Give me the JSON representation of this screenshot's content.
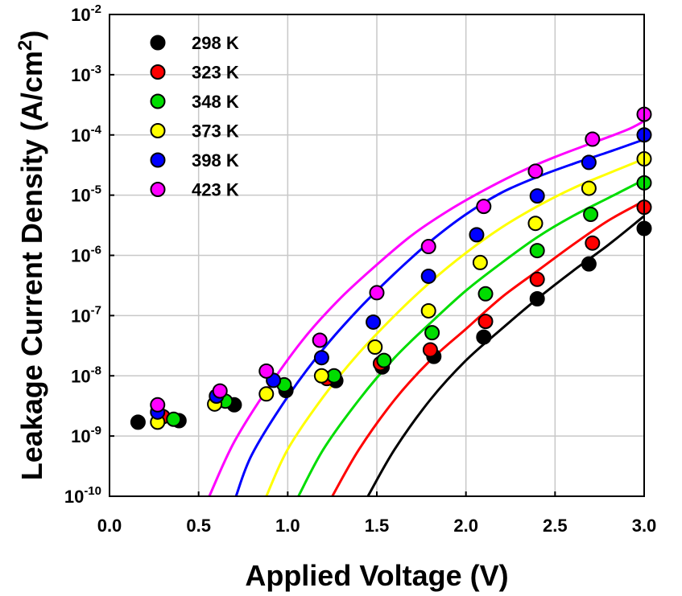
{
  "chart_data": {
    "type": "scatter",
    "xlabel": "Applied Voltage (V)",
    "ylabel": "Leakage Current Density (A/cm",
    "ylabel_sup": "2",
    "ylabel_end": ")",
    "xlim": [
      0.0,
      3.0
    ],
    "ylim_log10": [
      -10,
      -2
    ],
    "y_scale": "log",
    "grid": true,
    "legend_position": "top-left",
    "x_ticks": [
      {
        "value": 0.0,
        "label": "0.0"
      },
      {
        "value": 0.5,
        "label": "0.5"
      },
      {
        "value": 1.0,
        "label": "1.0"
      },
      {
        "value": 1.5,
        "label": "1.5"
      },
      {
        "value": 2.0,
        "label": "2.0"
      },
      {
        "value": 2.5,
        "label": "2.5"
      },
      {
        "value": 3.0,
        "label": "3.0"
      }
    ],
    "y_ticks": [
      {
        "exp": -2,
        "base": "10",
        "sup": "-2"
      },
      {
        "exp": -3,
        "base": "10",
        "sup": "-3"
      },
      {
        "exp": -4,
        "base": "10",
        "sup": "-4"
      },
      {
        "exp": -5,
        "base": "10",
        "sup": "-5"
      },
      {
        "exp": -6,
        "base": "10",
        "sup": "-6"
      },
      {
        "exp": -7,
        "base": "10",
        "sup": "-7"
      },
      {
        "exp": -8,
        "base": "10",
        "sup": "-8"
      },
      {
        "exp": -9,
        "base": "10",
        "sup": "-9"
      },
      {
        "exp": -10,
        "base": "10",
        "sup": "-10"
      }
    ],
    "series": [
      {
        "name": "298 K",
        "color": "#000000",
        "points": [
          [
            0.16,
            1.7e-09
          ],
          [
            0.39,
            1.8e-09
          ],
          [
            0.7,
            3.3e-09
          ],
          [
            0.99,
            5.7e-09
          ],
          [
            1.27,
            8.3e-09
          ],
          [
            1.53,
            1.4e-08
          ],
          [
            1.82,
            2.1e-08
          ],
          [
            2.1,
            4.4e-08
          ],
          [
            2.4,
            1.9e-07
          ],
          [
            2.69,
            7.2e-07
          ],
          [
            3.0,
            2.8e-06
          ]
        ],
        "fit": [
          [
            1.45,
            1e-10
          ],
          [
            1.6,
            6e-10
          ],
          [
            1.8,
            4e-09
          ],
          [
            2.0,
            1.8e-08
          ],
          [
            2.2,
            6e-08
          ],
          [
            2.4,
            1.9e-07
          ],
          [
            2.6,
            5.5e-07
          ],
          [
            2.8,
            1.5e-06
          ],
          [
            3.0,
            4.5e-06
          ]
        ]
      },
      {
        "name": "323 K",
        "color": "#ff0000",
        "points": [
          [
            0.3,
            2.1e-09
          ],
          [
            1.22,
            9e-09
          ],
          [
            1.52,
            1.6e-08
          ],
          [
            1.8,
            2.7e-08
          ],
          [
            2.11,
            8e-08
          ],
          [
            2.4,
            4e-07
          ],
          [
            2.71,
            1.6e-06
          ],
          [
            3.0,
            6.3e-06
          ]
        ],
        "fit": [
          [
            1.25,
            1e-10
          ],
          [
            1.4,
            6e-10
          ],
          [
            1.6,
            4e-09
          ],
          [
            1.8,
            1.8e-08
          ],
          [
            2.0,
            6e-08
          ],
          [
            2.2,
            2e-07
          ],
          [
            2.4,
            5.5e-07
          ],
          [
            2.6,
            1.5e-06
          ],
          [
            2.8,
            3.8e-06
          ],
          [
            3.0,
            8e-06
          ]
        ]
      },
      {
        "name": "348 K",
        "color": "#00dd00",
        "points": [
          [
            0.36,
            1.9e-09
          ],
          [
            0.65,
            3.8e-09
          ],
          [
            0.98,
            7.1e-09
          ],
          [
            1.26,
            1e-08
          ],
          [
            1.54,
            1.8e-08
          ],
          [
            1.81,
            5.2e-08
          ],
          [
            2.11,
            2.3e-07
          ],
          [
            2.4,
            1.2e-06
          ],
          [
            2.7,
            4.8e-06
          ],
          [
            3.0,
            1.6e-05
          ]
        ],
        "fit": [
          [
            1.06,
            1e-10
          ],
          [
            1.2,
            6e-10
          ],
          [
            1.4,
            4e-09
          ],
          [
            1.6,
            2e-08
          ],
          [
            1.8,
            7.5e-08
          ],
          [
            2.0,
            2.6e-07
          ],
          [
            2.2,
            7.5e-07
          ],
          [
            2.4,
            2e-06
          ],
          [
            2.6,
            4.5e-06
          ],
          [
            2.8,
            9e-06
          ],
          [
            3.0,
            1.8e-05
          ]
        ]
      },
      {
        "name": "373 K",
        "color": "#ffff00",
        "points": [
          [
            0.27,
            1.7e-09
          ],
          [
            0.59,
            3.4e-09
          ],
          [
            0.88,
            5e-09
          ],
          [
            1.19,
            1e-08
          ],
          [
            1.49,
            3e-08
          ],
          [
            1.79,
            1.2e-07
          ],
          [
            2.08,
            7.6e-07
          ],
          [
            2.39,
            3.4e-06
          ],
          [
            2.69,
            1.3e-05
          ],
          [
            3.0,
            4e-05
          ]
        ],
        "fit": [
          [
            0.88,
            1e-10
          ],
          [
            1.0,
            6e-10
          ],
          [
            1.2,
            4.5e-09
          ],
          [
            1.4,
            2.4e-08
          ],
          [
            1.6,
            1e-07
          ],
          [
            1.8,
            3.6e-07
          ],
          [
            2.0,
            1.1e-06
          ],
          [
            2.2,
            2.9e-06
          ],
          [
            2.4,
            6.5e-06
          ],
          [
            2.6,
            1.3e-05
          ],
          [
            2.8,
            2.3e-05
          ],
          [
            3.0,
            4e-05
          ]
        ]
      },
      {
        "name": "398 K",
        "color": "#0000ff",
        "points": [
          [
            0.27,
            2.5e-09
          ],
          [
            0.6,
            4.6e-09
          ],
          [
            0.92,
            8.4e-09
          ],
          [
            1.19,
            2e-08
          ],
          [
            1.48,
            7.8e-08
          ],
          [
            1.79,
            4.5e-07
          ],
          [
            2.06,
            2.2e-06
          ],
          [
            2.4,
            9.7e-06
          ],
          [
            2.69,
            3.5e-05
          ],
          [
            3.0,
            0.0001
          ]
        ],
        "fit": [
          [
            0.71,
            1e-10
          ],
          [
            0.8,
            5e-10
          ],
          [
            1.0,
            4.5e-09
          ],
          [
            1.2,
            2.8e-08
          ],
          [
            1.4,
            1.3e-07
          ],
          [
            1.6,
            5e-07
          ],
          [
            1.8,
            1.7e-06
          ],
          [
            2.0,
            4.8e-06
          ],
          [
            2.2,
            1.1e-05
          ],
          [
            2.4,
            2e-05
          ],
          [
            2.6,
            3.3e-05
          ],
          [
            2.8,
            5.2e-05
          ],
          [
            3.0,
            8.4e-05
          ]
        ]
      },
      {
        "name": "423 K",
        "color": "#ff00ff",
        "points": [
          [
            0.27,
            3.3e-09
          ],
          [
            0.62,
            5.6e-09
          ],
          [
            0.88,
            1.2e-08
          ],
          [
            1.18,
            3.9e-08
          ],
          [
            1.5,
            2.4e-07
          ],
          [
            1.79,
            1.4e-06
          ],
          [
            2.1,
            6.5e-06
          ],
          [
            2.39,
            2.5e-05
          ],
          [
            2.71,
            8.5e-05
          ],
          [
            3.0,
            0.00022
          ]
        ],
        "fit": [
          [
            0.56,
            1e-10
          ],
          [
            0.7,
            8e-10
          ],
          [
            0.9,
            7e-09
          ],
          [
            1.1,
            4.5e-08
          ],
          [
            1.3,
            2e-07
          ],
          [
            1.5,
            7e-07
          ],
          [
            1.7,
            2.2e-06
          ],
          [
            1.9,
            5.5e-06
          ],
          [
            2.1,
            1.2e-05
          ],
          [
            2.3,
            2.4e-05
          ],
          [
            2.5,
            4.3e-05
          ],
          [
            2.7,
            7.2e-05
          ],
          [
            2.9,
            0.00012
          ],
          [
            3.0,
            0.00017
          ]
        ]
      }
    ]
  }
}
